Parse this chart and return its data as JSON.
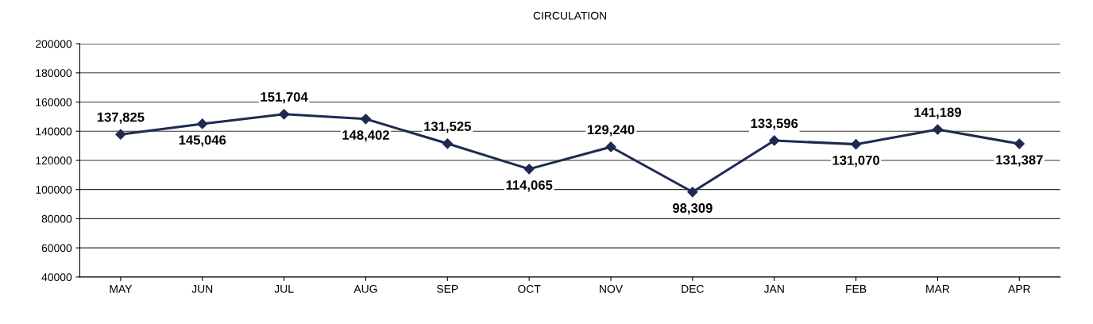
{
  "chart_data": {
    "type": "line",
    "title": "CIRCULATION",
    "categories": [
      "MAY",
      "JUN",
      "JUL",
      "AUG",
      "SEP",
      "OCT",
      "NOV",
      "DEC",
      "JAN",
      "FEB",
      "MAR",
      "APR"
    ],
    "series": [
      {
        "color": "#1f2a52",
        "values": [
          137825,
          145046,
          151704,
          148402,
          131525,
          114065,
          129240,
          98309,
          133596,
          131070,
          141189,
          131387
        ],
        "value_labels": [
          "137,825",
          "145,046",
          "151,704",
          "148,402",
          "131,525",
          "114,065",
          "129,240",
          "98,309",
          "133,596",
          "131,070",
          "141,189",
          "131,387"
        ]
      }
    ],
    "ylim": [
      40000,
      200000
    ],
    "yticks": [
      40000,
      60000,
      80000,
      100000,
      120000,
      140000,
      160000,
      180000,
      200000
    ],
    "grid": "y",
    "marker": "diamond",
    "line_style": "solid",
    "legend": false
  }
}
